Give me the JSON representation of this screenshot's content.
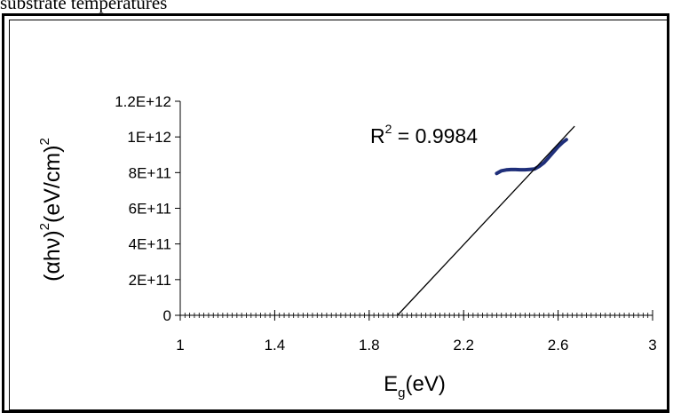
{
  "caption": "substrate temperatures",
  "chart_data": {
    "type": "line",
    "title": "",
    "xlabel": "E",
    "xlabel_sub": "g",
    "xlabel_unit": "(eV)",
    "ylabel_parts": [
      "(αhν)",
      "2",
      "(eV/cm)",
      "2"
    ],
    "xlim": [
      1,
      3
    ],
    "ylim": [
      0,
      1200000000000.0
    ],
    "x_ticks": [
      1,
      1.4,
      1.8,
      2.2,
      2.6,
      3
    ],
    "x_tick_labels": [
      "1",
      "1.4",
      "1.8",
      "2.2",
      "2.6",
      "3"
    ],
    "y_ticks": [
      0,
      200000000000.0,
      400000000000.0,
      600000000000.0,
      800000000000.0,
      1000000000000.0,
      1200000000000.0
    ],
    "y_tick_labels": [
      "0",
      "2E+11",
      "4E+11",
      "6E+11",
      "8E+11",
      "1E+12",
      "1.2E+12"
    ],
    "x_minor_step": 0.02,
    "grid": false,
    "annotation": {
      "text": "R",
      "sup": "2",
      "rest": " = 0.9984"
    },
    "series": [
      {
        "kind": "data",
        "color": "#1f2f7a",
        "x": [
          2.34,
          2.36,
          2.38,
          2.4,
          2.42,
          2.44,
          2.46,
          2.48,
          2.5,
          2.52,
          2.54,
          2.56,
          2.58,
          2.6,
          2.62,
          2.635
        ],
        "y": [
          795000000000.0,
          810000000000.0,
          815000000000.0,
          817000000000.0,
          817000000000.0,
          816000000000.0,
          816000000000.0,
          818000000000.0,
          820000000000.0,
          835000000000.0,
          855000000000.0,
          885000000000.0,
          915000000000.0,
          945000000000.0,
          970000000000.0,
          985000000000.0
        ]
      },
      {
        "kind": "fit",
        "color": "#000000",
        "x": [
          1.92,
          2.67
        ],
        "y": [
          0,
          1060000000000.0
        ]
      }
    ]
  }
}
